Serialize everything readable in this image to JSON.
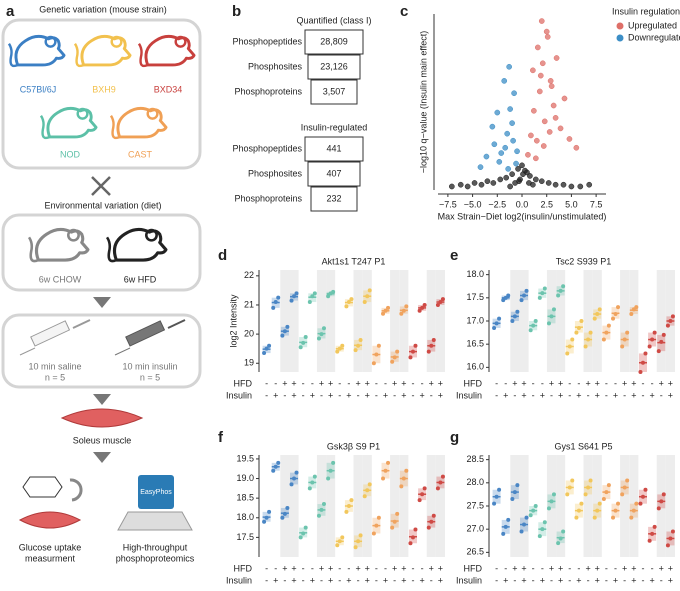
{
  "schematic": {
    "letter": "a",
    "genetic_title": "Genetic variation (mouse strain)",
    "strains": [
      {
        "name": "C57Bl/6J",
        "color": "#3b7fc4"
      },
      {
        "name": "BXH9",
        "color": "#f2c14e"
      },
      {
        "name": "BXD34",
        "color": "#c8403d"
      },
      {
        "name": "NOD",
        "color": "#5cc0a7"
      },
      {
        "name": "CAST",
        "color": "#f0a055"
      }
    ],
    "diet_title": "Environmental variation (diet)",
    "diets": [
      "6w CHOW",
      "6w HFD"
    ],
    "treatments": [
      [
        "10 min saline",
        "n = 5"
      ],
      [
        "10 min insulin",
        "n = 5"
      ]
    ],
    "muscle": "Soleus muscle",
    "glucose_label": [
      "Glucose uptake",
      "measurment"
    ],
    "proteomics_label": [
      "High-throughput",
      "phosphoproteomics"
    ],
    "kit": "EasyPhos"
  },
  "table": {
    "letter": "b",
    "quantified_title": "Quantified (class I)",
    "quantified_rows": [
      [
        "Phosphopeptides",
        "28,809"
      ],
      [
        "Phosphosites",
        "23,126"
      ],
      [
        "Phosphoproteins",
        "3,507"
      ]
    ],
    "regulated_title": "Insulin-regulated",
    "regulated_rows": [
      [
        "Phosphopeptides",
        "441"
      ],
      [
        "Phosphosites",
        "407"
      ],
      [
        "Phosphoproteins",
        "232"
      ]
    ]
  },
  "chart_data": [
    {
      "type": "scatter",
      "panel": "c",
      "xlabel": "Max Strain−Diet log2(insulin/unstimulated)",
      "ylabel": "−log10 q−value (Insulin main effect)",
      "legend_title": "Insulin regulation",
      "legend": "top-right",
      "xlim": [
        -8.5,
        8.5
      ],
      "ylim": [
        0,
        10
      ],
      "xticks": [
        {
          "value": -7.5,
          "label": "−7.5"
        },
        {
          "value": -5,
          "label": "−5.0"
        },
        {
          "value": -2.5,
          "label": "−2.5"
        },
        {
          "value": 0,
          "label": "0.0"
        },
        2.5,
        {
          "value": 5,
          "label": "5.0"
        },
        7.5
      ],
      "series": [
        {
          "name": "Upregulated",
          "color": "#de6f68",
          "x": [
            0.6,
            0.9,
            1.2,
            1.5,
            1.8,
            2.0,
            2.3,
            2.6,
            2.9,
            3.2,
            3.5,
            3.9,
            4.3,
            4.8,
            5.5,
            1.1,
            1.6,
            2.1,
            2.5,
            3.0,
            1.4,
            2.2,
            2.8,
            3.4,
            1.9
          ],
          "y": [
            2.0,
            3.1,
            4.5,
            2.8,
            5.6,
            9.6,
            3.9,
            8.7,
            6.2,
            4.8,
            7.5,
            3.5,
            5.2,
            2.9,
            2.4,
            6.8,
            8.1,
            7.2,
            9.0,
            5.9,
            1.8,
            2.5,
            3.3,
            4.1,
            6.5
          ]
        },
        {
          "name": "Downregulated",
          "color": "#3c8ec6",
          "x": [
            -0.6,
            -0.9,
            -1.2,
            -1.5,
            -1.8,
            -2.1,
            -2.5,
            -3.0,
            -3.6,
            -4.2,
            -0.8,
            -1.3,
            -1.7,
            -2.3,
            -1.0,
            -0.5,
            -1.4,
            -2.8
          ],
          "y": [
            1.5,
            2.8,
            4.6,
            3.2,
            6.2,
            2.1,
            4.4,
            3.6,
            1.9,
            1.3,
            5.5,
            7.0,
            2.4,
            1.6,
            3.8,
            2.2,
            1.2,
            2.6
          ]
        },
        {
          "color": "#222222",
          "x": [
            -7.1,
            -6.2,
            -5.5,
            -4.8,
            -4.1,
            -3.5,
            -2.9,
            -2.2,
            -1.6,
            -1.0,
            -0.4,
            0.0,
            0.3,
            0.8,
            1.4,
            2.0,
            2.7,
            3.4,
            4.2,
            5.0,
            5.9,
            6.8,
            -0.2,
            0.5,
            -0.7,
            1.1,
            0.1,
            -0.3,
            0.7,
            -1.2
          ],
          "y": [
            0.2,
            0.3,
            0.2,
            0.4,
            0.3,
            0.5,
            0.4,
            0.6,
            0.7,
            0.9,
            1.2,
            1.4,
            1.1,
            0.8,
            0.6,
            0.5,
            0.4,
            0.3,
            0.3,
            0.2,
            0.2,
            0.3,
            0.6,
            1.0,
            0.4,
            0.3,
            0.9,
            0.5,
            0.4,
            0.2
          ]
        }
      ]
    },
    {
      "type": "strip",
      "panel": "d",
      "title": "Akt1s1 T247 P1",
      "ylabel": "log2 Intensity",
      "ylim": [
        18.7,
        22.2
      ],
      "yticks": [
        19,
        20,
        21,
        22
      ],
      "row_labels": [
        "HFD",
        "Insulin"
      ],
      "hfd": [
        "-",
        "-",
        "+",
        "+"
      ],
      "insulin": [
        "-",
        "+",
        "-",
        "+"
      ],
      "colors": [
        "#4a86c5",
        "#6cc4ae",
        "#f2c75c",
        "#f0a35e",
        "#cf4a45"
      ],
      "groups": [
        [
          19.35,
          19.5,
          19.6
        ],
        [
          20.9,
          21.1,
          21.25
        ],
        [
          19.95,
          20.1,
          20.25
        ],
        [
          21.15,
          21.3,
          21.4
        ],
        [
          19.55,
          19.7,
          19.9
        ],
        [
          21.1,
          21.3,
          21.4
        ],
        [
          19.85,
          20.0,
          20.2
        ],
        [
          21.3,
          21.4,
          21.45
        ],
        [
          19.4,
          19.5,
          19.6
        ],
        [
          20.95,
          21.1,
          21.2
        ],
        [
          19.45,
          19.6,
          19.8
        ],
        [
          21.1,
          21.3,
          21.5
        ],
        [
          19.0,
          19.3,
          19.6
        ],
        [
          20.7,
          20.8,
          20.9
        ],
        [
          19.05,
          19.2,
          19.4
        ],
        [
          20.7,
          20.8,
          20.95
        ],
        [
          19.2,
          19.4,
          19.6
        ],
        [
          20.8,
          20.9,
          21.0
        ],
        [
          19.4,
          19.6,
          19.8
        ],
        [
          21.0,
          21.1,
          21.2
        ]
      ]
    },
    {
      "type": "strip",
      "panel": "e",
      "title": "Tsc2 S939 P1",
      "ylim": [
        15.9,
        18.1
      ],
      "yticks": [
        {
          "value": 16,
          "label": "16.0"
        },
        16.5,
        {
          "value": 17,
          "label": "17.0"
        },
        17.5,
        {
          "value": 18,
          "label": "18.0"
        }
      ],
      "row_labels": [
        "HFD",
        "Insulin"
      ],
      "hfd": [
        "-",
        "-",
        "+",
        "+"
      ],
      "insulin": [
        "-",
        "+",
        "-",
        "+"
      ],
      "colors": [
        "#4a86c5",
        "#6cc4ae",
        "#f2c75c",
        "#f0a35e",
        "#cf4a45"
      ],
      "groups": [
        [
          16.85,
          16.95,
          17.05
        ],
        [
          17.45,
          17.5,
          17.55
        ],
        [
          17.0,
          17.1,
          17.2
        ],
        [
          17.45,
          17.55,
          17.65
        ],
        [
          16.8,
          16.9,
          17.0
        ],
        [
          17.5,
          17.6,
          17.7
        ],
        [
          16.95,
          17.1,
          17.25
        ],
        [
          17.55,
          17.65,
          17.75
        ],
        [
          16.3,
          16.45,
          16.6
        ],
        [
          16.75,
          16.85,
          17.0
        ],
        [
          16.45,
          16.6,
          16.75
        ],
        [
          17.05,
          17.15,
          17.25
        ],
        [
          16.6,
          16.75,
          16.9
        ],
        [
          17.05,
          17.15,
          17.3
        ],
        [
          16.45,
          16.6,
          16.75
        ],
        [
          17.15,
          17.25,
          17.3
        ],
        [
          15.9,
          16.1,
          16.3
        ],
        [
          16.45,
          16.6,
          16.75
        ],
        [
          16.35,
          16.55,
          16.7
        ],
        [
          16.9,
          17.0,
          17.1
        ]
      ]
    },
    {
      "type": "strip",
      "panel": "f",
      "title": "Gsk3β S9 P1",
      "ylim": [
        17.0,
        19.6
      ],
      "yticks": [
        17.5,
        {
          "value": 18,
          "label": "18.0"
        },
        18.5,
        {
          "value": 19,
          "label": "19.0"
        },
        19.5
      ],
      "row_labels": [
        "HFD",
        "Insulin"
      ],
      "hfd": [
        "-",
        "-",
        "+",
        "+"
      ],
      "insulin": [
        "-",
        "+",
        "-",
        "+"
      ],
      "colors": [
        "#4a86c5",
        "#6cc4ae",
        "#f2c75c",
        "#f0a35e",
        "#cf4a45"
      ],
      "groups": [
        [
          17.9,
          18.0,
          18.15
        ],
        [
          19.2,
          19.3,
          19.4
        ],
        [
          18.0,
          18.1,
          18.25
        ],
        [
          18.85,
          19.0,
          19.15
        ],
        [
          17.5,
          17.6,
          17.75
        ],
        [
          18.75,
          18.9,
          19.05
        ],
        [
          18.05,
          18.2,
          18.35
        ],
        [
          19.0,
          19.2,
          19.4
        ],
        [
          17.3,
          17.4,
          17.5
        ],
        [
          18.15,
          18.3,
          18.45
        ],
        [
          17.25,
          17.4,
          17.55
        ],
        [
          18.55,
          18.7,
          18.85
        ],
        [
          17.6,
          17.8,
          18.0
        ],
        [
          19.0,
          19.2,
          19.4
        ],
        [
          17.75,
          17.9,
          18.1
        ],
        [
          18.8,
          19.0,
          19.2
        ],
        [
          17.35,
          17.5,
          17.7
        ],
        [
          18.45,
          18.6,
          18.75
        ],
        [
          17.75,
          17.9,
          18.05
        ],
        [
          18.75,
          18.9,
          19.05
        ]
      ]
    },
    {
      "type": "strip",
      "panel": "g",
      "title": "Gys1 S641 P5",
      "ylim": [
        26.4,
        28.6
      ],
      "yticks": [
        26.5,
        {
          "value": 27,
          "label": "27.0"
        },
        27.5,
        {
          "value": 28,
          "label": "28.0"
        },
        28.5
      ],
      "row_labels": [
        "HFD",
        "Insulin"
      ],
      "hfd": [
        "-",
        "-",
        "+",
        "+"
      ],
      "insulin": [
        "-",
        "+",
        "-",
        "+"
      ],
      "colors": [
        "#4a86c5",
        "#6cc4ae",
        "#f2c75c",
        "#f0a35e",
        "#cf4a45"
      ],
      "groups": [
        [
          27.55,
          27.7,
          27.85
        ],
        [
          26.9,
          27.05,
          27.2
        ],
        [
          27.65,
          27.8,
          27.95
        ],
        [
          26.95,
          27.1,
          27.25
        ],
        [
          27.3,
          27.4,
          27.5
        ],
        [
          26.85,
          27.0,
          27.15
        ],
        [
          27.45,
          27.6,
          27.75
        ],
        [
          26.7,
          26.8,
          26.95
        ],
        [
          27.75,
          27.9,
          28.05
        ],
        [
          27.25,
          27.4,
          27.55
        ],
        [
          27.75,
          27.9,
          28.05
        ],
        [
          27.25,
          27.4,
          27.55
        ],
        [
          27.65,
          27.8,
          27.95
        ],
        [
          27.25,
          27.4,
          27.55
        ],
        [
          27.75,
          27.9,
          28.05
        ],
        [
          27.25,
          27.4,
          27.55
        ],
        [
          27.55,
          27.7,
          27.85
        ],
        [
          26.75,
          26.9,
          27.05
        ],
        [
          27.45,
          27.6,
          27.75
        ],
        [
          26.65,
          26.8,
          26.95
        ]
      ]
    }
  ]
}
